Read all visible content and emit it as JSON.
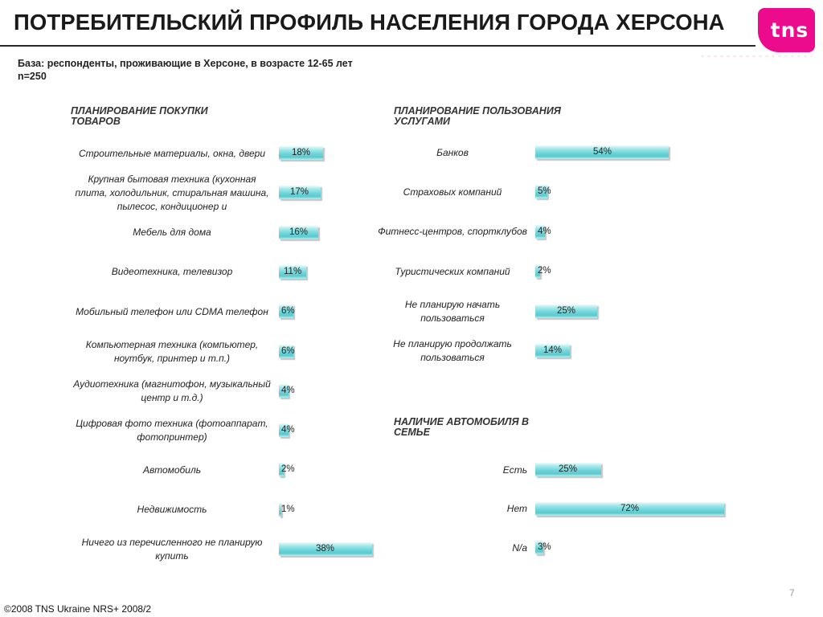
{
  "slide": {
    "title": "ПОТРЕБИТЕЛЬСКИЙ ПРОФИЛЬ НАСЕЛЕНИЯ ГОРОДА ХЕРСОНА",
    "base_line1": "База: респонденты, проживающие в Херсоне, в возрасте 12-65 лет",
    "base_line2": "n=250",
    "logo_text": "tns",
    "page_number": "7",
    "footer": "©2008 TNS Ukraine  NRS+ 2008/2"
  },
  "colors": {
    "bar": "#6fd6da",
    "logo": "#ec0b8c"
  },
  "chart_data": [
    {
      "type": "bar",
      "orientation": "horizontal",
      "title": "ПЛАНИРОВАНИЕ ПОКУПКИ ТОВАРОВ",
      "categories": [
        "Строительные материалы, окна, двери",
        "Крупная бытовая техника (кухонная плита, холодильник, стиральная машина, пылесос, кондиционер и",
        "Мебель для дома",
        "Видеотехника, телевизор",
        "Мобильный телефон или CDMA телефон",
        "Компьютерная техника (компьютер, ноутбук, принтер и т.п.)",
        "Аудиотехника (магнитофон, музыкальный центр и т.д.)",
        "Цифровая фото техника (фотоаппарат, фотопринтер)",
        "Автомобиль",
        "Недвижимость",
        "Ничего из перечисленного не планирую купить"
      ],
      "values": [
        18,
        17,
        16,
        11,
        6,
        6,
        4,
        4,
        2,
        1,
        38
      ],
      "data_labels": [
        "18%",
        "17%",
        "16%",
        "11%",
        "6%",
        "6%",
        "4%",
        "4%",
        "2%",
        "1%",
        "38%"
      ],
      "grid": false,
      "legend": "none"
    },
    {
      "type": "bar",
      "orientation": "horizontal",
      "title": "ПЛАНИРОВАНИЕ ПОЛЬЗОВАНИЯ УСЛУГАМИ",
      "categories": [
        "Банков",
        "Страховых компаний",
        "Фитнесс-центров, спортклубов",
        "Туристических компаний",
        "Не планирую начать пользоваться",
        "Не планирую продолжать пользоваться"
      ],
      "values": [
        54,
        5,
        4,
        2,
        25,
        14
      ],
      "data_labels": [
        "54%",
        "5%",
        "4%",
        "2%",
        "25%",
        "14%"
      ],
      "grid": false,
      "legend": "none"
    },
    {
      "type": "bar",
      "orientation": "horizontal",
      "title": "НАЛИЧИЕ АВТОМОБИЛЯ В СЕМЬЕ",
      "categories": [
        "Есть",
        "Нет",
        "N/a"
      ],
      "values": [
        25,
        72,
        3
      ],
      "data_labels": [
        "25%",
        "72%",
        "3%"
      ],
      "grid": false,
      "legend": "none"
    }
  ]
}
